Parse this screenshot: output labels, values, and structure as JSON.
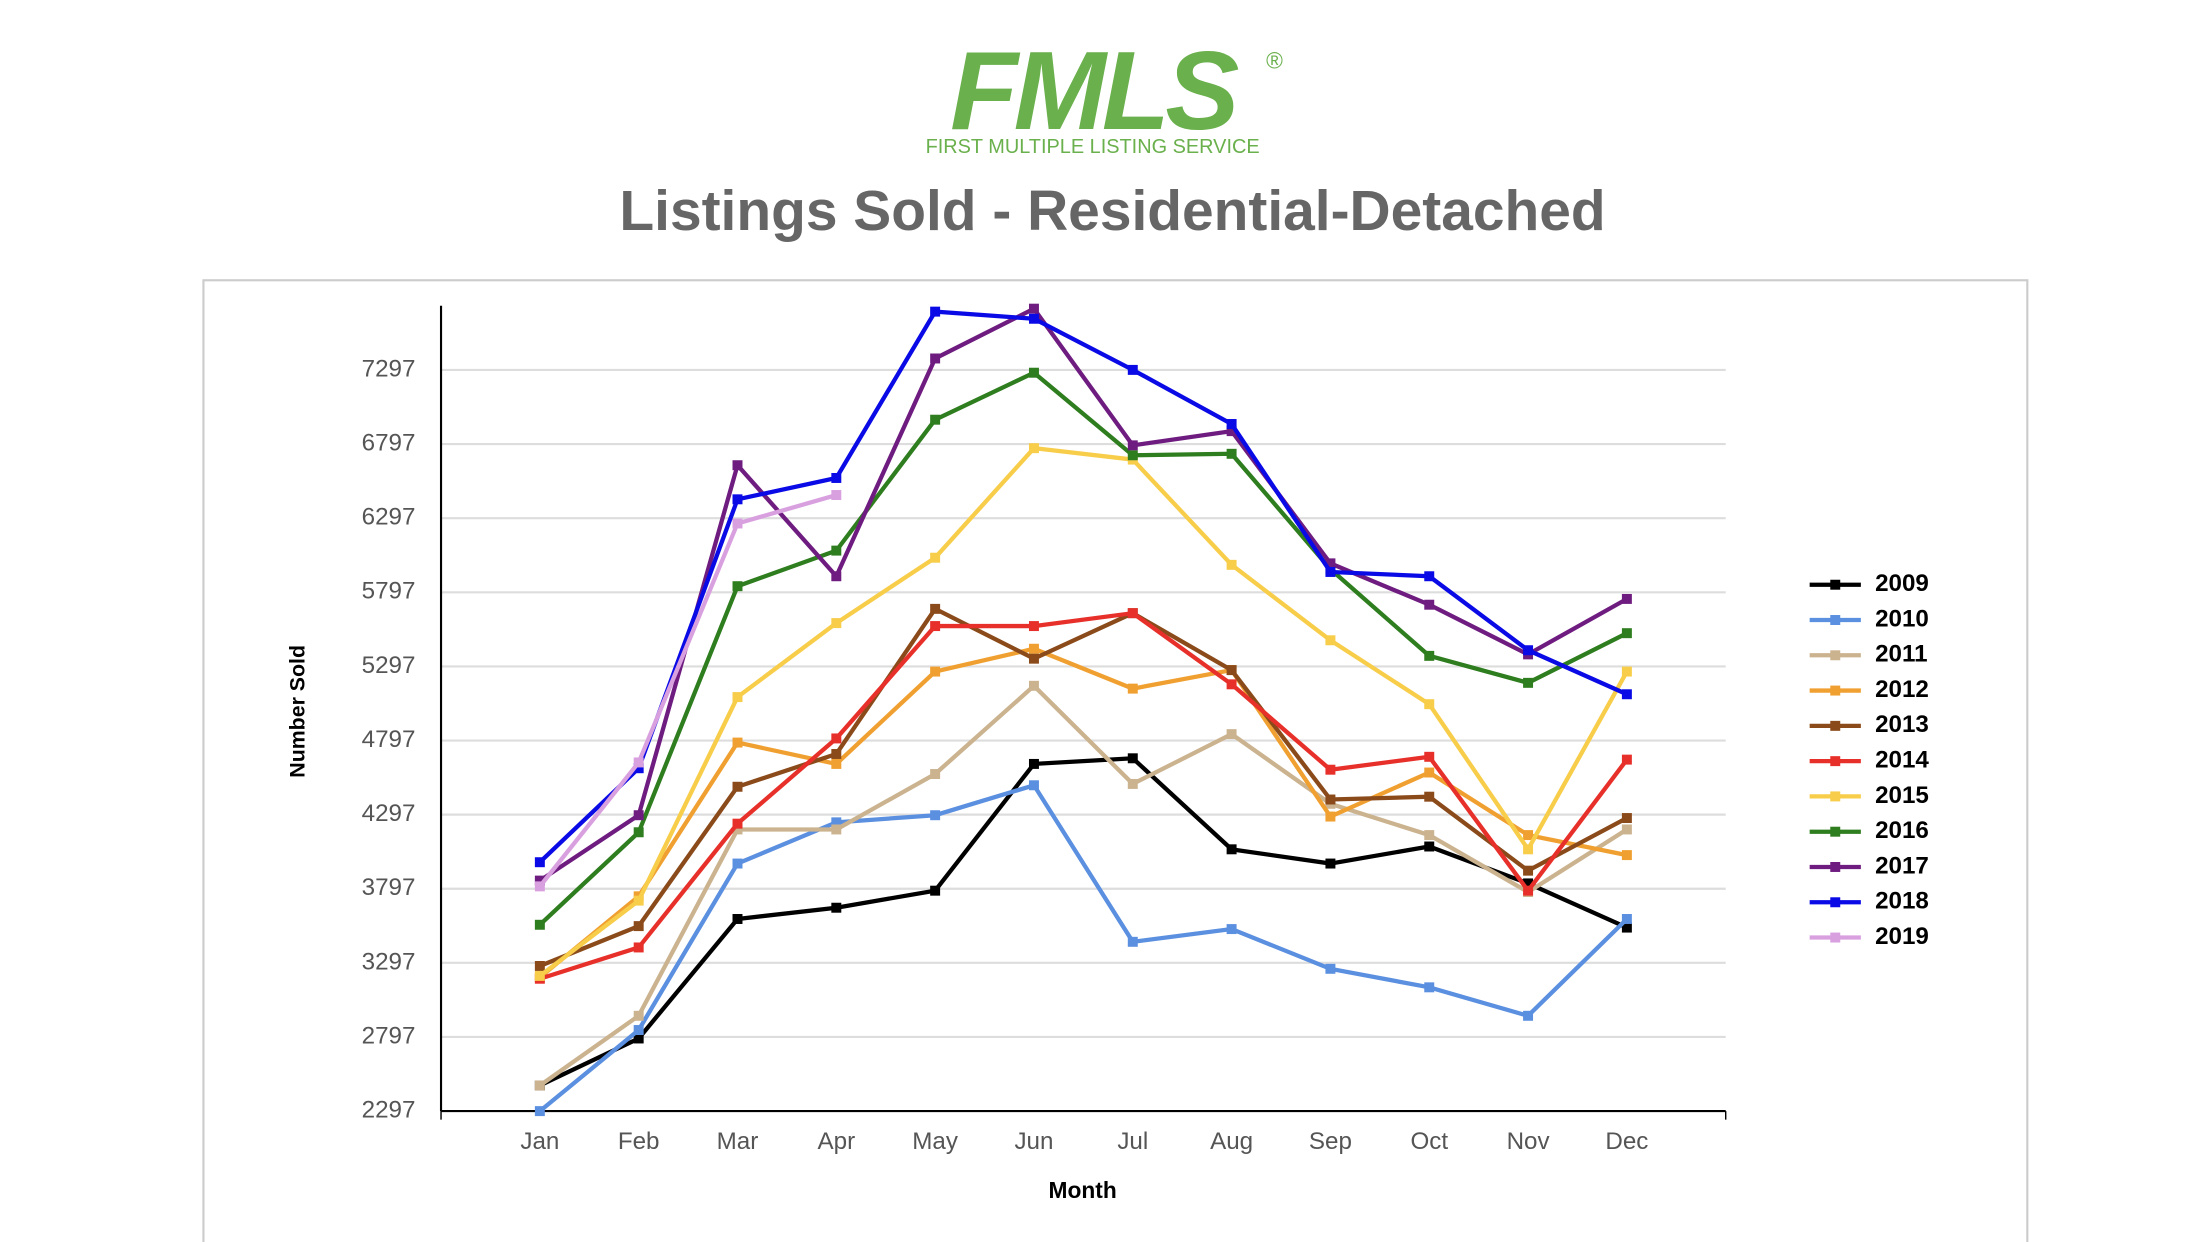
{
  "logo": {
    "name": "FMLS",
    "mark": "®",
    "tagline": "FIRST MULTIPLE LISTING SERVICE"
  },
  "chart_data": {
    "type": "line",
    "title": "Listings Sold - Residential-Detached",
    "x_label": "Month",
    "y_label": "Number Sold",
    "categories": [
      "Jan",
      "Feb",
      "Mar",
      "Apr",
      "May",
      "Jun",
      "Jul",
      "Aug",
      "Sep",
      "Oct",
      "Nov",
      "Dec"
    ],
    "ylim": [
      2297,
      7730
    ],
    "yticks": [
      2297,
      2797,
      3297,
      3797,
      4297,
      4797,
      5297,
      5797,
      6297,
      6797,
      7297
    ],
    "grid": true,
    "legend": "right",
    "series": [
      {
        "name": "2009",
        "color": "#000000",
        "values": [
          2470,
          2787,
          3593,
          3669,
          3784,
          4639,
          4677,
          4063,
          3967,
          4082,
          3833,
          3535
        ]
      },
      {
        "name": "2010",
        "color": "#5b8fe0",
        "values": [
          2297,
          2844,
          3967,
          4245,
          4293,
          4495,
          3439,
          3525,
          3257,
          3132,
          2940,
          3593
        ]
      },
      {
        "name": "2011",
        "color": "#cbb38f",
        "values": [
          2470,
          2940,
          4197,
          4197,
          4571,
          5166,
          4504,
          4840,
          4370,
          4159,
          3775,
          4197
        ]
      },
      {
        "name": "2012",
        "color": "#f0a030",
        "values": [
          3199,
          3746,
          4783,
          4639,
          5262,
          5416,
          5147,
          5272,
          4284,
          4581,
          4159,
          4024
        ]
      },
      {
        "name": "2013",
        "color": "#8b4a1a",
        "values": [
          3276,
          3545,
          4485,
          4706,
          5685,
          5349,
          5656,
          5272,
          4399,
          4418,
          3919,
          4274
        ]
      },
      {
        "name": "2014",
        "color": "#e8302a",
        "values": [
          3190,
          3401,
          4236,
          4811,
          5569,
          5569,
          5656,
          5176,
          4600,
          4687,
          3784,
          4668
        ]
      },
      {
        "name": "2015",
        "color": "#f7cd4a",
        "values": [
          3209,
          3717,
          5090,
          5589,
          6030,
          6769,
          6692,
          5982,
          5473,
          5042,
          4063,
          5262
        ]
      },
      {
        "name": "2016",
        "color": "#2e7d1e",
        "values": [
          3554,
          4178,
          5838,
          6078,
          6961,
          7278,
          6721,
          6731,
          5953,
          5368,
          5186,
          5521
        ]
      },
      {
        "name": "2017",
        "color": "#6f1c80",
        "values": [
          3852,
          4293,
          6654,
          5905,
          7374,
          7710,
          6788,
          6884,
          5992,
          5713,
          5378,
          5752
        ]
      },
      {
        "name": "2018",
        "color": "#0a0ae6",
        "values": [
          3976,
          4610,
          6424,
          6568,
          7690,
          7642,
          7297,
          6932,
          5934,
          5905,
          5406,
          5109
        ]
      },
      {
        "name": "2019",
        "color": "#d9a0e0",
        "values": [
          3813,
          4649,
          6261,
          6453,
          null,
          null,
          null,
          null,
          null,
          null,
          null,
          null
        ]
      }
    ]
  }
}
